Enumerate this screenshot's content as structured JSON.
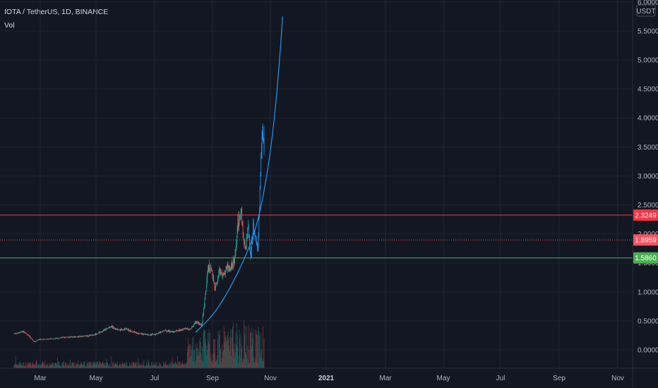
{
  "legend": {
    "symbol": "IOTA / TetherUS, 1D, BINANCE",
    "volume": "Vol"
  },
  "chart_data": {
    "type": "candlestick",
    "title": "IOTA / TetherUS, 1D, BINANCE",
    "currency": "USDT",
    "y_axis": {
      "ticks": [
        "6.0000",
        "5.5000",
        "5.0000",
        "4.5000",
        "4.0000",
        "3.5000",
        "3.0000",
        "2.5000",
        "2.0000",
        "1.5000",
        "1.0000",
        "0.5000",
        "0.0000"
      ],
      "ylim": [
        -0.35,
        6.0
      ]
    },
    "x_axis": {
      "ticks": [
        "Mar",
        "May",
        "Jul",
        "Sep",
        "Nov",
        "2021",
        "Mar",
        "May",
        "Jul",
        "Sep",
        "Nov"
      ],
      "bold_tick": "2021"
    },
    "grid": true,
    "price_path": {
      "dates": [
        "2020-02-01",
        "2020-02-20",
        "2020-03-12",
        "2020-03-20",
        "2020-04-15",
        "2020-05-10",
        "2020-06-10",
        "2020-07-05",
        "2020-07-25",
        "2020-08-08",
        "2020-08-20",
        "2020-09-05",
        "2020-09-25",
        "2020-10-15",
        "2020-11-01",
        "2020-11-20",
        "2020-12-05",
        "2020-12-25",
        "2021-01-08",
        "2021-01-20",
        "2021-01-30",
        "2021-02-06",
        "2021-02-12",
        "2021-02-18",
        "2021-02-25",
        "2021-03-05",
        "2021-03-12",
        "2021-03-20",
        "2021-03-27",
        "2021-04-03",
        "2021-04-10",
        "2021-04-16",
        "2021-04-20",
        "2021-04-25",
        "2021-04-30",
        "2021-05-05",
        "2021-05-10",
        "2021-05-14",
        "2021-05-19",
        "2021-05-23",
        "2021-05-27",
        "2021-06-01"
      ],
      "close": [
        0.28,
        0.32,
        0.14,
        0.18,
        0.19,
        0.22,
        0.23,
        0.26,
        0.34,
        0.41,
        0.34,
        0.36,
        0.29,
        0.26,
        0.27,
        0.34,
        0.31,
        0.36,
        0.36,
        0.48,
        0.42,
        0.95,
        1.45,
        1.35,
        1.08,
        1.35,
        1.28,
        1.42,
        1.4,
        1.55,
        2.15,
        2.4,
        2.0,
        1.7,
        2.15,
        1.55,
        2.15,
        1.9,
        1.75,
        2.7,
        3.9,
        3.4
      ]
    },
    "highlighted_segment": {
      "from": "2021-05-01",
      "to": "2021-06-01",
      "color": "#2196f3"
    },
    "volume": {
      "note": "volume histogram at bottom; taller green/red bars from 2021-01 onward",
      "relative_peak_period": "2021-02 to 2021-05"
    },
    "parabolic_curve": {
      "color": "#2196f3",
      "points": [
        {
          "date": "2021-01-18",
          "price": 0.3
        },
        {
          "date": "2021-03-01",
          "price": 0.67
        },
        {
          "date": "2021-04-15",
          "price": 1.4
        },
        {
          "date": "2021-05-15",
          "price": 2.05
        },
        {
          "date": "2021-06-05",
          "price": 2.95
        },
        {
          "date": "2021-06-20",
          "price": 3.95
        },
        {
          "date": "2021-07-01",
          "price": 5.1
        },
        {
          "date": "2021-07-06",
          "price": 5.75
        }
      ]
    },
    "horizontal_lines": [
      {
        "price": 2.3249,
        "label": "2.3249",
        "color": "#f23645",
        "style": "solid"
      },
      {
        "price": 1.8959,
        "label": "1.8959",
        "color": "#f7525f",
        "style": "dotted"
      },
      {
        "price": 1.586,
        "label": "1.5860",
        "color": "#4caf50",
        "style": "solid"
      }
    ]
  }
}
